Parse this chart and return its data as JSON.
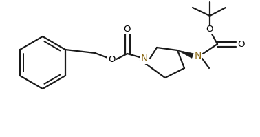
{
  "bg_color": "#ffffff",
  "bond_color": "#1a1a1a",
  "N_color": "#8B6914",
  "line_width": 1.6,
  "figsize": [
    3.78,
    1.99
  ],
  "dpi": 100,
  "xlim": [
    0,
    378
  ],
  "ylim": [
    0,
    199
  ]
}
